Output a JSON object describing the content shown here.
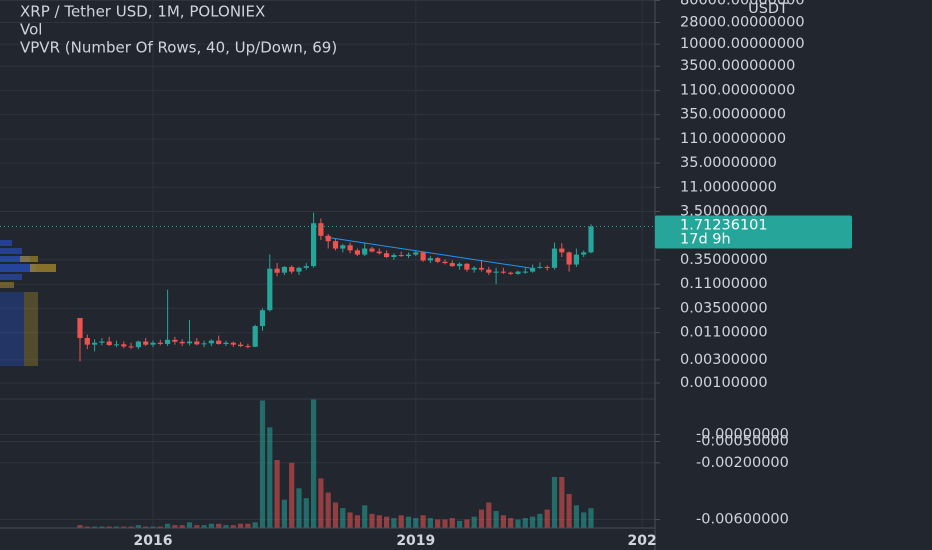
{
  "chart_data": [
    {
      "type": "candlestick",
      "title": "XRP / Tether USD, 1M, POLONIEX",
      "indicator": "VPVR (Number Of Rows, 40, Up/Down, 69)",
      "y_unit": "USDT",
      "scale": "log",
      "up_color": "#26a69a",
      "down_color": "#ef5350",
      "categories": [
        null,
        null,
        null,
        null,
        null,
        null,
        null,
        null,
        null,
        null,
        "2016",
        null,
        null,
        null,
        null,
        null,
        null,
        null,
        null,
        null,
        null,
        null,
        null,
        null,
        null,
        null,
        null,
        null,
        null,
        null,
        null,
        null,
        null,
        null,
        null,
        null,
        null,
        null,
        null,
        null,
        null,
        null,
        null,
        null,
        null,
        null,
        "2019",
        null,
        null,
        null,
        null,
        null,
        null,
        null,
        null,
        null,
        null,
        null,
        null,
        null,
        null,
        null,
        null,
        null,
        null,
        null,
        null,
        null,
        null,
        null,
        null,
        null,
        null,
        null,
        null,
        null,
        null,
        "202"
      ],
      "open": [
        0.022,
        0.0085,
        0.0062,
        0.0068,
        0.0072,
        0.0061,
        0.0063,
        0.0057,
        0.0055,
        0.0072,
        0.0062,
        0.0068,
        0.0064,
        0.0078,
        0.0071,
        0.0066,
        0.0072,
        0.0063,
        0.0066,
        0.0075,
        0.0064,
        0.0068,
        0.0062,
        0.0058,
        0.0056,
        0.015,
        0.032,
        0.23,
        0.19,
        0.25,
        0.2,
        0.24,
        0.26,
        2.0,
        1.1,
        0.85,
        0.6,
        0.7,
        0.55,
        0.45,
        0.6,
        0.52,
        0.48,
        0.4,
        0.44,
        0.42,
        0.45,
        0.5,
        0.34,
        0.38,
        0.32,
        0.3,
        0.26,
        0.29,
        0.22,
        0.24,
        0.22,
        0.19,
        0.2,
        0.19,
        0.18,
        0.2,
        0.2,
        0.24,
        0.25,
        0.24,
        0.6,
        0.5,
        0.28,
        0.45,
        0.5,
        null,
        null,
        null,
        null,
        null,
        null,
        null
      ],
      "high": [
        0.022,
        0.01,
        0.008,
        0.0085,
        0.009,
        0.0075,
        0.0072,
        0.0068,
        0.0075,
        0.0085,
        0.0075,
        0.0078,
        0.085,
        0.009,
        0.008,
        0.02,
        0.0085,
        0.0075,
        0.008,
        0.0095,
        0.0075,
        0.0072,
        0.007,
        0.0065,
        0.016,
        0.035,
        0.45,
        0.3,
        0.26,
        0.27,
        0.25,
        0.3,
        3.3,
        2.5,
        1.2,
        0.95,
        0.75,
        0.8,
        0.6,
        0.8,
        0.65,
        0.6,
        0.55,
        0.48,
        0.52,
        0.5,
        0.55,
        0.52,
        0.42,
        0.4,
        0.36,
        0.34,
        0.31,
        0.3,
        0.26,
        0.35,
        0.25,
        0.24,
        0.24,
        0.2,
        0.21,
        0.24,
        0.28,
        0.31,
        0.27,
        0.8,
        0.78,
        0.52,
        0.6,
        0.55,
        1.9,
        null,
        null,
        null,
        null,
        null,
        null,
        null
      ],
      "low": [
        0.0028,
        0.005,
        0.0045,
        0.006,
        0.0058,
        0.0055,
        0.0052,
        0.005,
        0.005,
        0.0058,
        0.0055,
        0.006,
        0.0058,
        0.0062,
        0.0058,
        0.006,
        0.006,
        0.0055,
        0.0058,
        0.0062,
        0.0058,
        0.0056,
        0.0055,
        0.0052,
        0.0055,
        0.012,
        0.03,
        0.16,
        0.17,
        0.18,
        0.17,
        0.22,
        0.24,
        0.9,
        0.6,
        0.55,
        0.5,
        0.48,
        0.42,
        0.42,
        0.5,
        0.45,
        0.38,
        0.35,
        0.4,
        0.38,
        0.42,
        0.32,
        0.3,
        0.3,
        0.28,
        0.25,
        0.22,
        0.2,
        0.19,
        0.2,
        0.17,
        0.11,
        0.18,
        0.17,
        0.17,
        0.18,
        0.19,
        0.23,
        0.21,
        0.22,
        0.4,
        0.2,
        0.25,
        0.4,
        0.48,
        null,
        null,
        null,
        null,
        null,
        null,
        null
      ],
      "close": [
        0.0085,
        0.0062,
        0.0068,
        0.0072,
        0.0061,
        0.0063,
        0.0057,
        0.0055,
        0.0072,
        0.0062,
        0.0068,
        0.0064,
        0.0078,
        0.0071,
        0.0066,
        0.0072,
        0.0063,
        0.0066,
        0.0075,
        0.0064,
        0.0068,
        0.0062,
        0.0058,
        0.0056,
        0.015,
        0.032,
        0.23,
        0.19,
        0.25,
        0.2,
        0.24,
        0.26,
        2.0,
        1.1,
        0.85,
        0.6,
        0.7,
        0.55,
        0.45,
        0.6,
        0.52,
        0.48,
        0.4,
        0.44,
        0.42,
        0.45,
        0.5,
        0.34,
        0.38,
        0.32,
        0.3,
        0.26,
        0.29,
        0.22,
        0.24,
        0.22,
        0.19,
        0.2,
        0.19,
        0.18,
        0.2,
        0.2,
        0.24,
        0.25,
        0.24,
        0.6,
        0.5,
        0.28,
        0.45,
        0.5,
        1.71236101,
        null,
        null,
        null,
        null,
        null,
        null,
        null
      ],
      "last_price": 1.71236101,
      "countdown": "17d 9h",
      "ylim": [
        0.00049,
        81800
      ],
      "yticks": [
        {
          "value": 80000,
          "label": "80000.00000000"
        },
        {
          "value": 28000,
          "label": "28000.00000000"
        },
        {
          "value": 10000,
          "label": "10000.00000000"
        },
        {
          "value": 3500,
          "label": "3500.00000000"
        },
        {
          "value": 1100,
          "label": "1100.00000000"
        },
        {
          "value": 350,
          "label": "350.00000000"
        },
        {
          "value": 110,
          "label": "110.00000000"
        },
        {
          "value": 35,
          "label": "35.00000000"
        },
        {
          "value": 11,
          "label": "11.00000000"
        },
        {
          "value": 3.5,
          "label": "3.50000000"
        },
        {
          "value": 0.35,
          "label": "0.35000000"
        },
        {
          "value": 0.11,
          "label": "0.11000000"
        },
        {
          "value": 0.035,
          "label": "0.03500000"
        },
        {
          "value": 0.011,
          "label": "0.01100000"
        },
        {
          "value": 0.003,
          "label": "0.00300000"
        },
        {
          "value": 0.001,
          "label": "0.00100000"
        }
      ],
      "grid": true
    },
    {
      "type": "bar",
      "title": "Vol",
      "values": [
        -0.0064,
        -0.0065,
        -0.0065,
        -0.0065,
        -0.0065,
        -0.0065,
        -0.0065,
        -0.0065,
        -0.0064,
        -0.0065,
        -0.0065,
        -0.0065,
        -0.0063,
        -0.0064,
        -0.0064,
        -0.0062,
        -0.0064,
        -0.0064,
        -0.0063,
        -0.0063,
        -0.0064,
        -0.0064,
        -0.0063,
        -0.0063,
        -0.0062,
        0.0024,
        0.0005,
        -0.0018,
        -0.0046,
        -0.002,
        -0.0038,
        -0.0045,
        0.0025,
        -0.0031,
        -0.0041,
        -0.0048,
        -0.0052,
        -0.0055,
        -0.0057,
        -0.005,
        -0.0056,
        -0.0057,
        -0.0058,
        -0.0059,
        -0.0057,
        -0.0058,
        -0.0059,
        -0.0057,
        -0.0059,
        -0.006,
        -0.006,
        -0.0059,
        -0.0061,
        -0.006,
        -0.0058,
        -0.0053,
        -0.0048,
        -0.0054,
        -0.0057,
        -0.0059,
        -0.006,
        -0.0059,
        -0.0058,
        -0.0056,
        -0.0053,
        -0.003,
        -0.003,
        -0.0042,
        -0.005,
        -0.0055,
        -0.0052,
        null,
        null,
        null,
        null,
        null,
        null,
        null
      ],
      "ylim": [
        -0.0066,
        0.0025
      ],
      "yticks": [
        {
          "value": 0,
          "label": "-0.00000000"
        },
        {
          "value": -0.0005,
          "label": "-0.00050000"
        },
        {
          "value": -0.002,
          "label": "-0.00200000"
        },
        {
          "value": -0.006,
          "label": "-0.00600000"
        }
      ],
      "grid": true
    }
  ]
}
